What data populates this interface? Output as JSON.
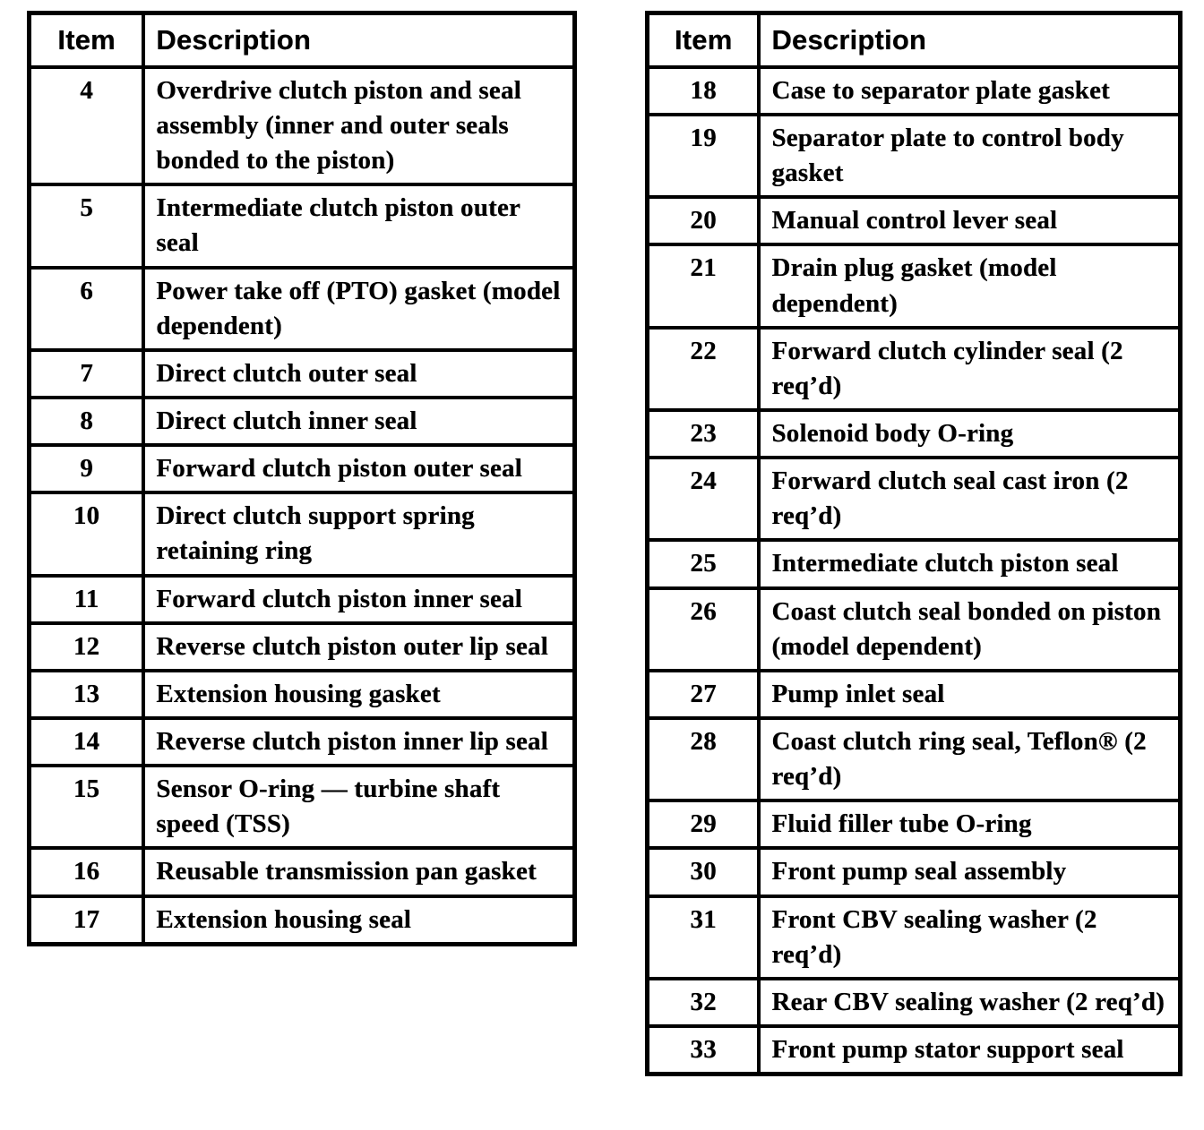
{
  "page": {
    "background_color": "#ffffff",
    "ink_color": "#000000",
    "kind": "scanned parts list tables"
  },
  "tables": [
    {
      "name": "left",
      "columns": [
        "Item",
        "Description"
      ],
      "rows": [
        {
          "item": "4",
          "description": "Overdrive clutch piston and seal assembly (inner and outer seals bonded to the piston)"
        },
        {
          "item": "5",
          "description": "Intermediate clutch piston outer seal"
        },
        {
          "item": "6",
          "description": "Power take off (PTO) gasket (model dependent)"
        },
        {
          "item": "7",
          "description": "Direct clutch outer seal"
        },
        {
          "item": "8",
          "description": "Direct clutch inner seal"
        },
        {
          "item": "9",
          "description": "Forward clutch piston outer seal"
        },
        {
          "item": "10",
          "description": "Direct clutch support spring retaining ring"
        },
        {
          "item": "11",
          "description": "Forward clutch piston inner seal"
        },
        {
          "item": "12",
          "description": "Reverse clutch piston outer lip seal"
        },
        {
          "item": "13",
          "description": "Extension housing gasket"
        },
        {
          "item": "14",
          "description": "Reverse clutch piston inner lip seal"
        },
        {
          "item": "15",
          "description": "Sensor O-ring — turbine shaft speed (TSS)"
        },
        {
          "item": "16",
          "description": "Reusable transmission pan gasket"
        },
        {
          "item": "17",
          "description": "Extension housing seal"
        }
      ]
    },
    {
      "name": "right",
      "columns": [
        "Item",
        "Description"
      ],
      "rows": [
        {
          "item": "18",
          "description": "Case to separator plate gasket"
        },
        {
          "item": "19",
          "description": "Separator plate to control body gasket"
        },
        {
          "item": "20",
          "description": "Manual control lever seal"
        },
        {
          "item": "21",
          "description": "Drain plug gasket (model dependent)"
        },
        {
          "item": "22",
          "description": "Forward clutch cylinder seal (2 req’d)"
        },
        {
          "item": "23",
          "description": "Solenoid body O-ring"
        },
        {
          "item": "24",
          "description": "Forward clutch seal cast iron (2 req’d)"
        },
        {
          "item": "25",
          "description": "Intermediate clutch piston seal"
        },
        {
          "item": "26",
          "description": "Coast clutch seal bonded on piston (model dependent)"
        },
        {
          "item": "27",
          "description": "Pump inlet seal"
        },
        {
          "item": "28",
          "description": "Coast clutch ring seal, Teflon® (2 req’d)"
        },
        {
          "item": "29",
          "description": "Fluid filler tube O-ring"
        },
        {
          "item": "30",
          "description": "Front pump seal assembly"
        },
        {
          "item": "31",
          "description": "Front CBV sealing washer (2 req’d)"
        },
        {
          "item": "32",
          "description": "Rear CBV sealing washer (2 req’d)"
        },
        {
          "item": "33",
          "description": "Front pump stator support seal"
        }
      ]
    }
  ]
}
